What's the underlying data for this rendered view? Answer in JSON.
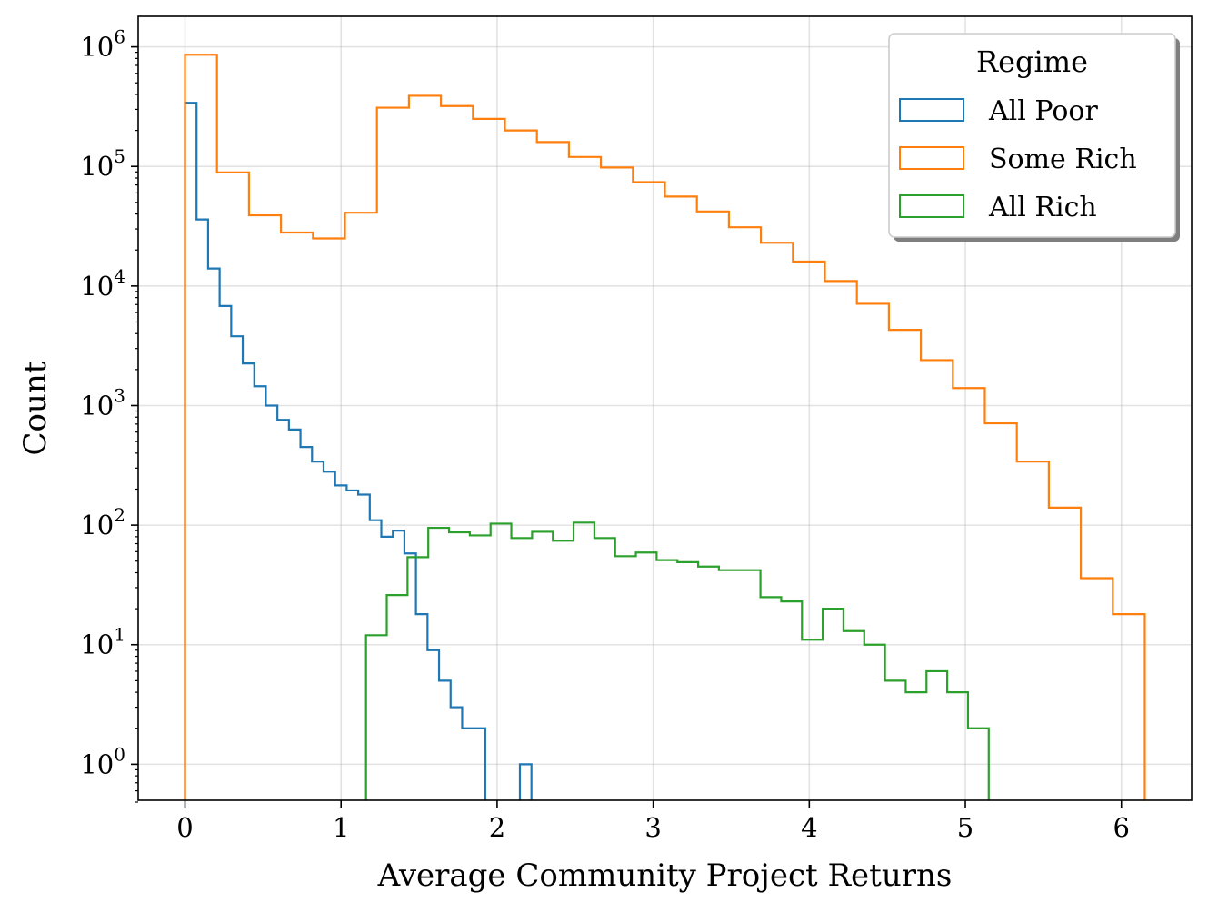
{
  "chart_data": {
    "type": "histogram",
    "xlabel": "Average Community Project Returns",
    "ylabel": "Count",
    "yscale": "log",
    "xlim": [
      -0.3,
      6.45
    ],
    "ylim": [
      0.5,
      1800000
    ],
    "grid": true,
    "x_ticks": [
      0,
      1,
      2,
      3,
      4,
      5,
      6
    ],
    "x_tick_labels": [
      "0",
      "1",
      "2",
      "3",
      "4",
      "5",
      "6"
    ],
    "y_ticks": [
      1,
      10,
      100,
      1000,
      10000,
      100000,
      1000000
    ],
    "y_tick_labels": [
      {
        "base": "10",
        "exp": "0"
      },
      {
        "base": "10",
        "exp": "1"
      },
      {
        "base": "10",
        "exp": "2"
      },
      {
        "base": "10",
        "exp": "3"
      },
      {
        "base": "10",
        "exp": "4"
      },
      {
        "base": "10",
        "exp": "5"
      },
      {
        "base": "10",
        "exp": "6"
      }
    ],
    "legend": {
      "title": "Regime",
      "placement": "upper right",
      "entries": [
        "All Poor",
        "Some Rich",
        "All Rich"
      ]
    },
    "series": [
      {
        "name": "All Poor",
        "color": "#1f77b4",
        "bin_edges": [
          0.0,
          0.074,
          0.148,
          0.222,
          0.296,
          0.37,
          0.444,
          0.518,
          0.592,
          0.666,
          0.74,
          0.814,
          0.888,
          0.962,
          1.036,
          1.11,
          1.184,
          1.258,
          1.332,
          1.406,
          1.48,
          1.554,
          1.628,
          1.702,
          1.776,
          1.85,
          1.924,
          1.998,
          2.072,
          2.146,
          2.22
        ],
        "counts": [
          340000,
          36000,
          14000,
          6800,
          3800,
          2250,
          1450,
          1000,
          760,
          630,
          450,
          340,
          280,
          215,
          195,
          180,
          110,
          80,
          90,
          58,
          18,
          9,
          5,
          3,
          2,
          2,
          0,
          0,
          0,
          1
        ]
      },
      {
        "name": "Some Rich",
        "color": "#ff7f0e",
        "bin_edges": [
          0.0,
          0.205,
          0.41,
          0.615,
          0.82,
          1.025,
          1.23,
          1.435,
          1.64,
          1.845,
          2.05,
          2.255,
          2.46,
          2.665,
          2.87,
          3.075,
          3.28,
          3.485,
          3.69,
          3.895,
          4.1,
          4.305,
          4.51,
          4.715,
          4.92,
          5.125,
          5.33,
          5.535,
          5.74,
          5.945,
          6.15
        ],
        "counts": [
          860000,
          89000,
          39000,
          28000,
          25000,
          41000,
          310000,
          390000,
          320000,
          250000,
          200000,
          160000,
          120000,
          98000,
          74000,
          56000,
          42000,
          31000,
          23000,
          16000,
          11000,
          7100,
          4300,
          2400,
          1400,
          710,
          340,
          140,
          36,
          18
        ]
      },
      {
        "name": "All Rich",
        "color": "#2ca02c",
        "bin_edges": [
          1.16,
          1.293,
          1.426,
          1.559,
          1.692,
          1.825,
          1.958,
          2.091,
          2.224,
          2.357,
          2.49,
          2.623,
          2.756,
          2.889,
          3.022,
          3.155,
          3.288,
          3.421,
          3.554,
          3.687,
          3.82,
          3.953,
          4.086,
          4.219,
          4.352,
          4.485,
          4.618,
          4.751,
          4.884,
          5.017,
          5.15
        ],
        "counts": [
          12,
          26,
          54,
          95,
          87,
          82,
          103,
          78,
          88,
          74,
          105,
          78,
          55,
          59,
          51,
          49,
          45,
          42,
          42,
          25,
          23,
          11,
          20,
          13,
          10,
          5,
          4,
          6,
          4,
          2
        ]
      }
    ]
  }
}
